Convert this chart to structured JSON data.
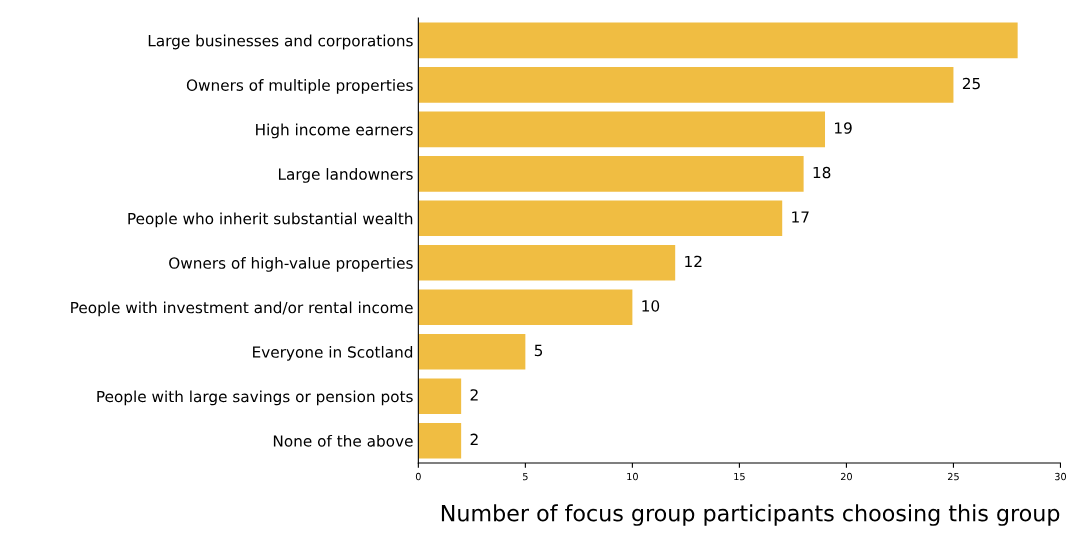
{
  "chart_data": {
    "type": "bar",
    "orientation": "horizontal",
    "xlabel": "Number of focus group participants choosing this group",
    "categories": [
      "Large businesses and corporations",
      "Owners of multiple properties",
      "High income earners",
      "Large landowners",
      "People who inherit substantial wealth",
      "Owners of high-value properties",
      "People with investment and/or rental income",
      "Everyone in Scotland",
      "People with large savings or pension pots",
      "None of the above"
    ],
    "values": [
      28,
      25,
      19,
      18,
      17,
      12,
      10,
      5,
      2,
      2
    ],
    "value_labels": [
      null,
      "25",
      "19",
      "18",
      "17",
      "12",
      "10",
      "5",
      "2",
      "2"
    ],
    "color": "#f0bd42",
    "xlim": [
      0,
      30
    ],
    "xticks": [
      0,
      5,
      10,
      15,
      20,
      25,
      30
    ],
    "grid": false
  }
}
